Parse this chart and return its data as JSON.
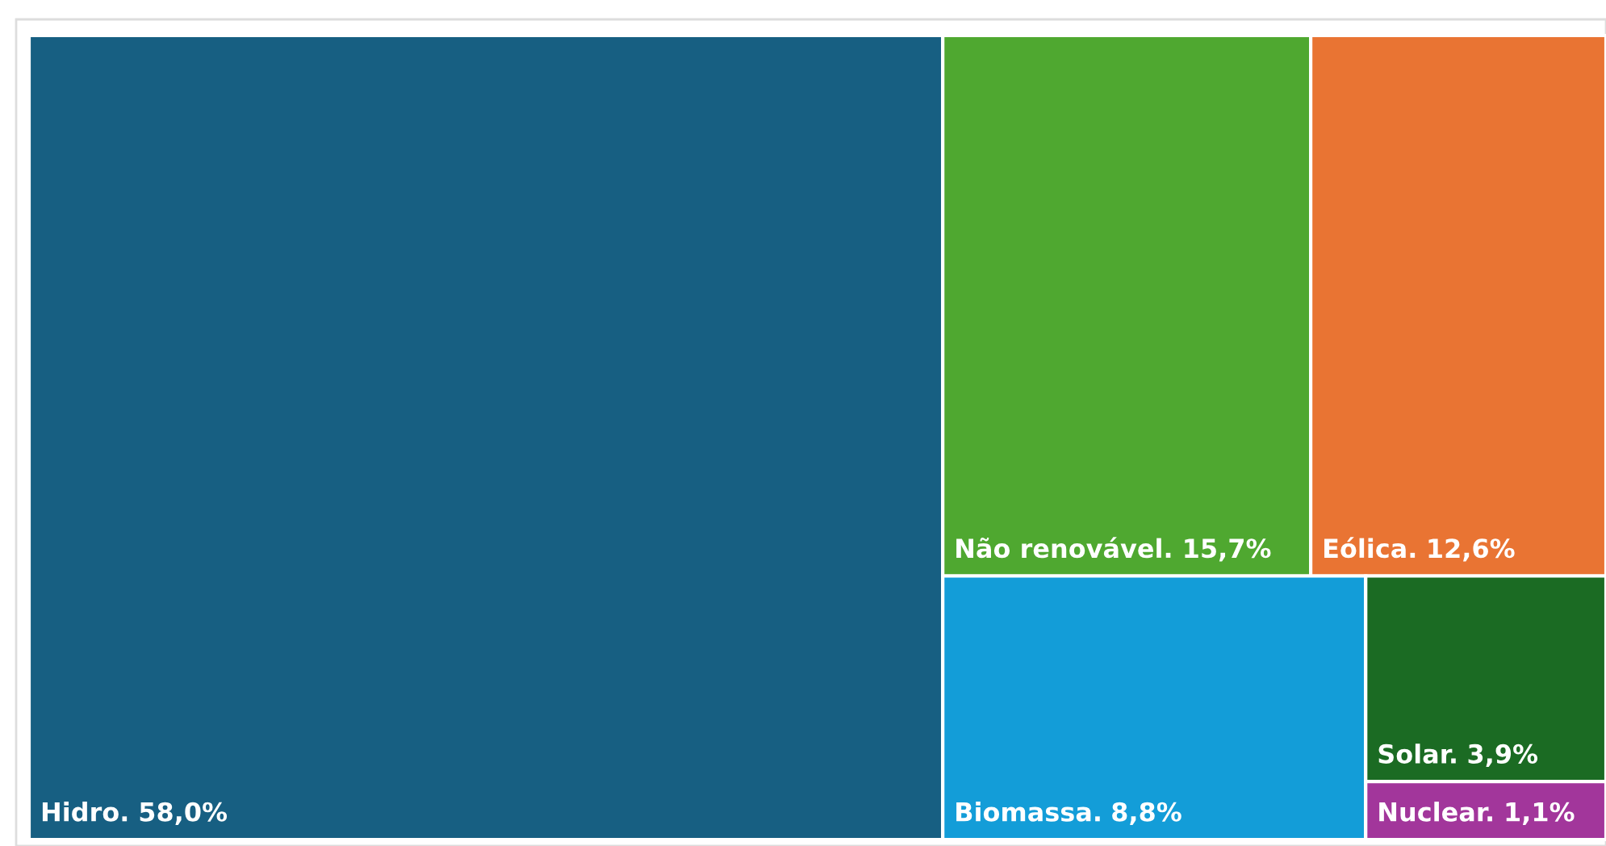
{
  "chart_data": {
    "type": "other",
    "categories": [
      "Hidro.",
      "Não renovável.",
      "Eólica.",
      "Biomassa.",
      "Solar.",
      "Nuclear."
    ],
    "values": [
      58.0,
      15.7,
      12.6,
      8.8,
      3.9,
      1.1
    ],
    "value_labels": [
      "58,0%",
      "15,7%",
      "12,6%",
      "8,8%",
      "3,9%",
      "1,1%"
    ],
    "colors": [
      "#175f82",
      "#4fa830",
      "#e97433",
      "#139dd8",
      "#1b6b23",
      "#a2369b"
    ]
  }
}
